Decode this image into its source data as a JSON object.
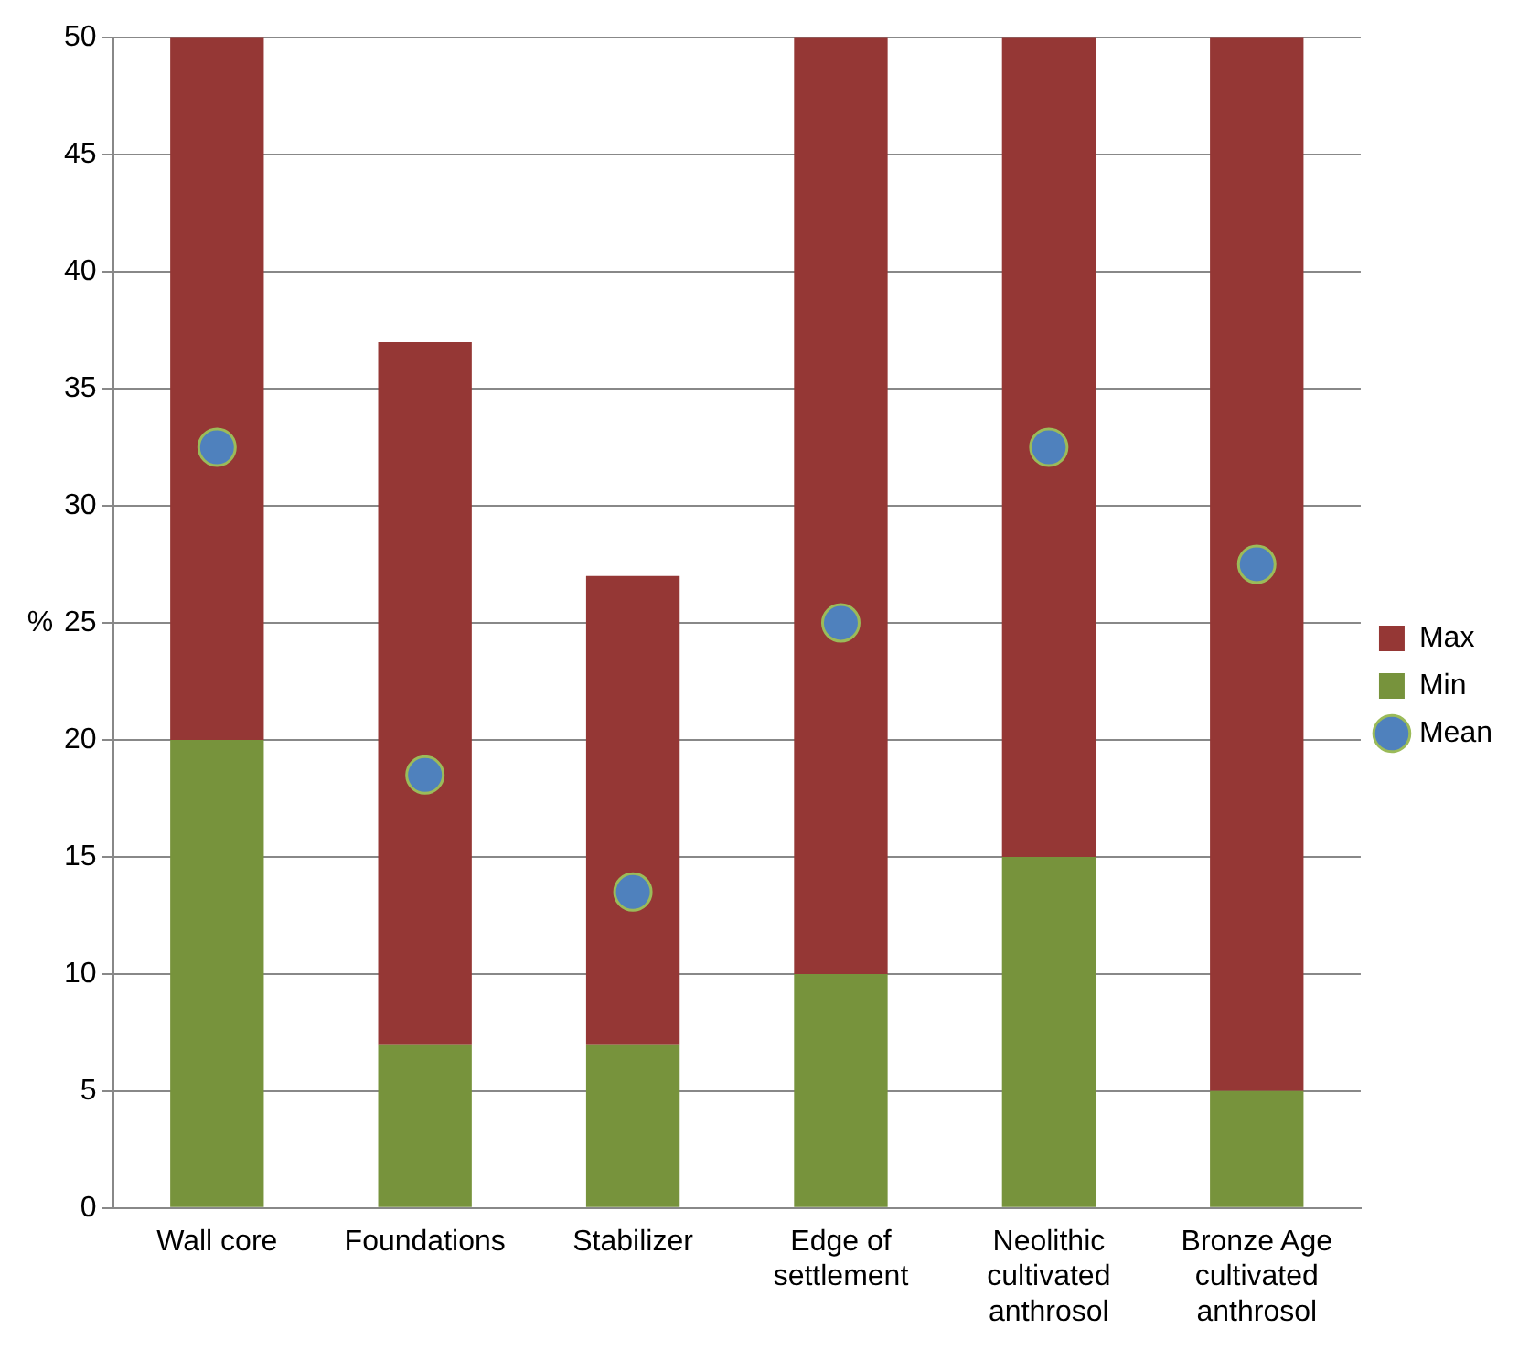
{
  "chart_data": {
    "type": "bar",
    "stacked": true,
    "ylabel": "%",
    "categories": [
      "Wall core",
      "Foundations",
      "Stabilizer",
      "Edge of settlement",
      "Neolithic cultivated anthrosol",
      "Bronze Age cultivated anthrosol"
    ],
    "series": [
      {
        "name": "Min",
        "color": "#77933c",
        "values": [
          20,
          7,
          7,
          10,
          15,
          5
        ]
      },
      {
        "name": "Max",
        "color": "#953735",
        "values": [
          30,
          30,
          20,
          40,
          35,
          45
        ]
      },
      {
        "name": "Mean",
        "type": "scatter",
        "color": "#4f81bd",
        "marker": "circle",
        "x": [
          "Wall core",
          "Foundations",
          "Stabilizer",
          "Edge of settlement",
          "Neolithic cultivated anthrosol",
          "Bronze Age cultivated anthrosol"
        ],
        "values": [
          32.5,
          18.5,
          13.5,
          25,
          32.5,
          27.5
        ]
      }
    ],
    "ylim": [
      0,
      50
    ],
    "yticks": [
      0,
      5,
      10,
      15,
      20,
      25,
      30,
      35,
      40,
      45,
      50
    ],
    "grid": "y",
    "legend": "right"
  }
}
